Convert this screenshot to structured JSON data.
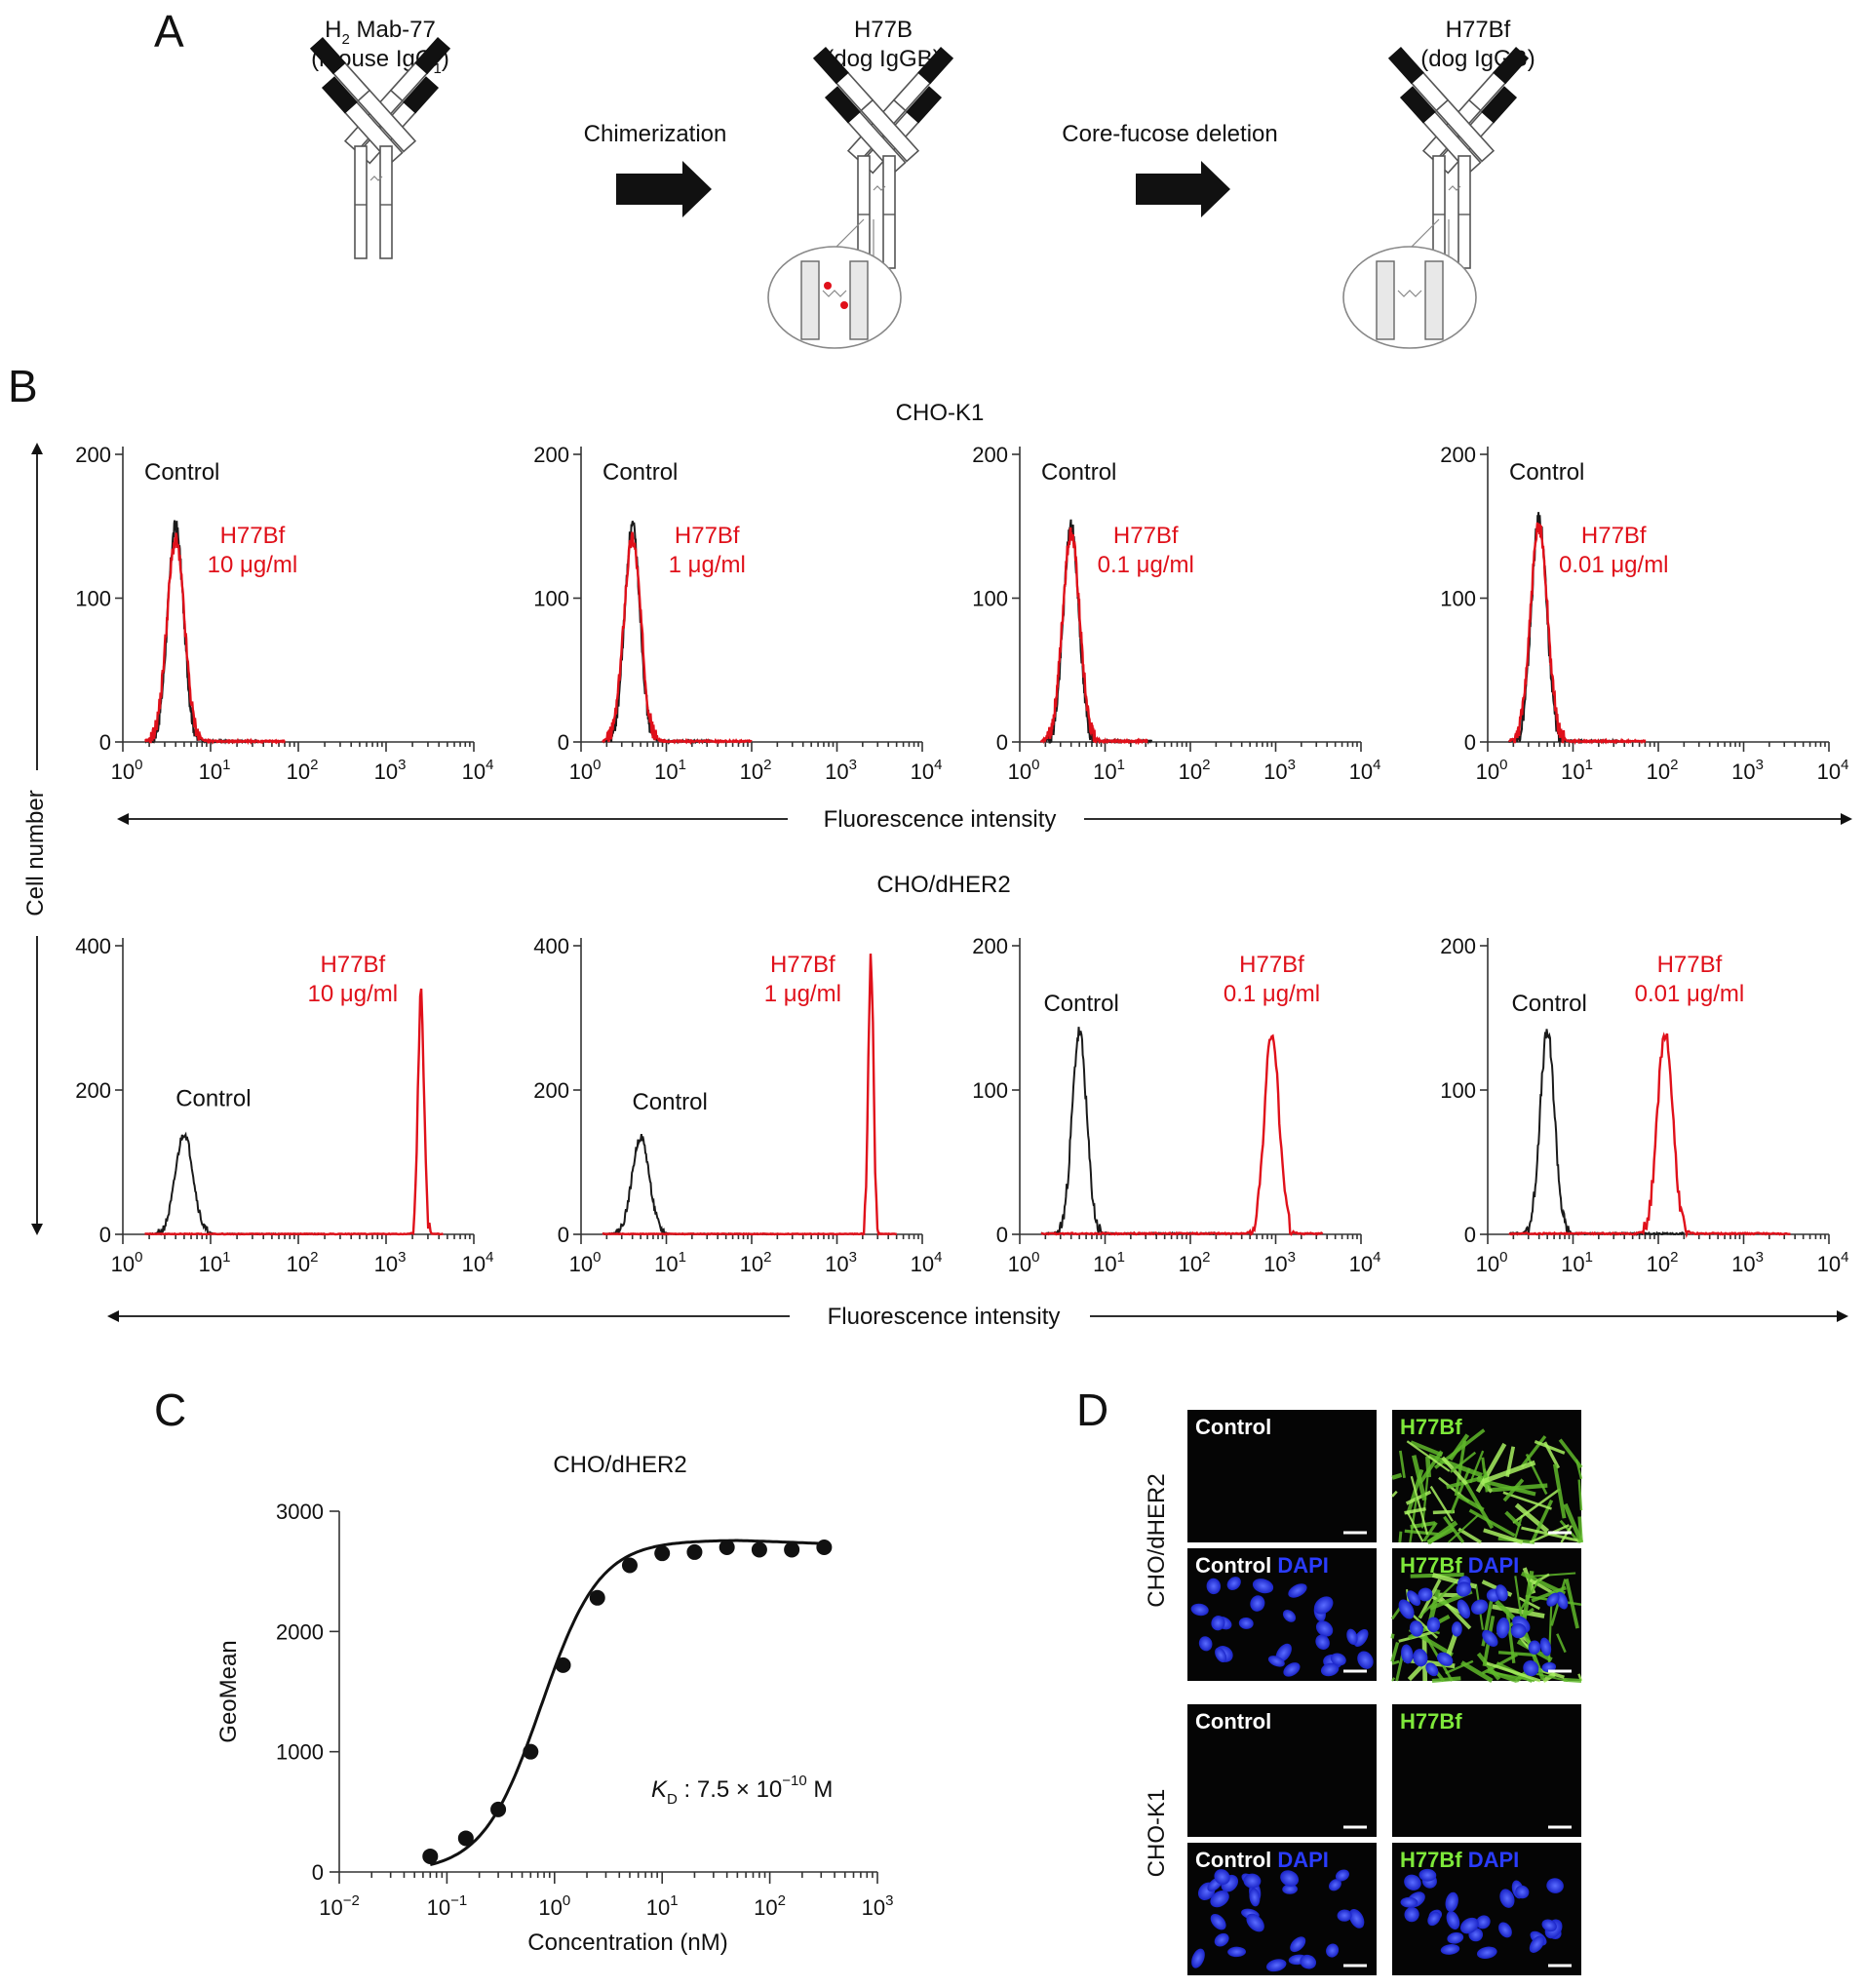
{
  "panel_a": {
    "letter": "A",
    "ab1": {
      "line1_prefix": "H",
      "line1_sub": "2",
      "line1_rest": " Mab-77",
      "line2_prefix": "(mouse IgG",
      "line2_sub": "1",
      "line2_suffix": ")"
    },
    "arrow1_label": "Chimerization",
    "ab2": {
      "line1": "H77B",
      "line2": "(dog IgGB)"
    },
    "arrow2_label": "Core-fucose deletion",
    "ab3": {
      "line1": "H77Bf",
      "line2": "(dog IgGB)"
    }
  },
  "panel_b": {
    "letter": "B",
    "row1_title": "CHO-K1",
    "row2_title": "CHO/dHER2",
    "y_axis_label": "Cell number",
    "x_axis_label": "Fluorescence intensity",
    "control_label": "Control",
    "antibody_label": "H77Bf",
    "concentrations": [
      "10 μg/ml",
      "1 μg/ml",
      "0.1 μg/ml",
      "0.01 μg/ml"
    ],
    "colors": {
      "control": "#1a1a1a",
      "antibody": "#e0101a"
    }
  },
  "panel_c": {
    "letter": "C",
    "kd_symbol": "K",
    "kd_sub": "D",
    "kd_text": " : 7.5 × 10",
    "kd_exp": "−10",
    "kd_unit": " M"
  },
  "panel_d": {
    "letter": "D",
    "row_labels": [
      "CHO/dHER2",
      "CHO-K1"
    ],
    "control": "Control",
    "antibody": "H77Bf",
    "dapi": "DAPI",
    "colors": {
      "green": "#7ee83a",
      "blue": "#2a3cff"
    }
  },
  "chart_data": [
    {
      "type": "histogram",
      "title": "CHO-K1",
      "x_scale": "log",
      "xlim": [
        1,
        10000
      ],
      "xticks": [
        "10^0",
        "10^1",
        "10^2",
        "10^3",
        "10^4"
      ],
      "ylim": [
        0,
        200
      ],
      "yticks": [
        0,
        100,
        200
      ],
      "series": [
        {
          "name": "Control",
          "peak_x": 4,
          "peak_y": 150
        },
        {
          "name": "H77Bf 10 μg/ml",
          "peak_x": 4,
          "peak_y": 140
        }
      ]
    },
    {
      "type": "histogram",
      "title": "CHO-K1",
      "x_scale": "log",
      "xlim": [
        1,
        10000
      ],
      "xticks": [
        "10^0",
        "10^1",
        "10^2",
        "10^3",
        "10^4"
      ],
      "ylim": [
        0,
        200
      ],
      "yticks": [
        0,
        100,
        200
      ],
      "series": [
        {
          "name": "Control",
          "peak_x": 4,
          "peak_y": 150
        },
        {
          "name": "H77Bf 1 μg/ml",
          "peak_x": 4,
          "peak_y": 142
        }
      ]
    },
    {
      "type": "histogram",
      "title": "CHO-K1",
      "x_scale": "log",
      "xlim": [
        1,
        10000
      ],
      "xticks": [
        "10^0",
        "10^1",
        "10^2",
        "10^3",
        "10^4"
      ],
      "ylim": [
        0,
        200
      ],
      "yticks": [
        0,
        100,
        200
      ],
      "series": [
        {
          "name": "Control",
          "peak_x": 4,
          "peak_y": 150
        },
        {
          "name": "H77Bf 0.1 μg/ml",
          "peak_x": 4,
          "peak_y": 145
        }
      ]
    },
    {
      "type": "histogram",
      "title": "CHO-K1",
      "x_scale": "log",
      "xlim": [
        1,
        10000
      ],
      "xticks": [
        "10^0",
        "10^1",
        "10^2",
        "10^3",
        "10^4"
      ],
      "ylim": [
        0,
        200
      ],
      "yticks": [
        0,
        100,
        200
      ],
      "series": [
        {
          "name": "Control",
          "peak_x": 4,
          "peak_y": 155
        },
        {
          "name": "H77Bf 0.01 μg/ml",
          "peak_x": 4,
          "peak_y": 150
        }
      ]
    },
    {
      "type": "histogram",
      "title": "CHO/dHER2",
      "x_scale": "log",
      "xlim": [
        1,
        10000
      ],
      "xticks": [
        "10^0",
        "10^1",
        "10^2",
        "10^3",
        "10^4"
      ],
      "ylim": [
        0,
        400
      ],
      "yticks": [
        0,
        200,
        400
      ],
      "series": [
        {
          "name": "Control",
          "peak_x": 5,
          "peak_y": 140
        },
        {
          "name": "H77Bf 10 μg/ml",
          "peak_x": 2500,
          "peak_y": 330
        }
      ]
    },
    {
      "type": "histogram",
      "title": "CHO/dHER2",
      "x_scale": "log",
      "xlim": [
        1,
        10000
      ],
      "xticks": [
        "10^0",
        "10^1",
        "10^2",
        "10^3",
        "10^4"
      ],
      "ylim": [
        0,
        400
      ],
      "yticks": [
        0,
        200,
        400
      ],
      "series": [
        {
          "name": "Control",
          "peak_x": 5,
          "peak_y": 135
        },
        {
          "name": "H77Bf 1 μg/ml",
          "peak_x": 2500,
          "peak_y": 380
        }
      ]
    },
    {
      "type": "histogram",
      "title": "CHO/dHER2",
      "x_scale": "log",
      "xlim": [
        1,
        10000
      ],
      "xticks": [
        "10^0",
        "10^1",
        "10^2",
        "10^3",
        "10^4"
      ],
      "ylim": [
        0,
        200
      ],
      "yticks": [
        0,
        100,
        200
      ],
      "series": [
        {
          "name": "Control",
          "peak_x": 5,
          "peak_y": 140
        },
        {
          "name": "H77Bf 0.1 μg/ml",
          "peak_x": 900,
          "peak_y": 140
        }
      ]
    },
    {
      "type": "histogram",
      "title": "CHO/dHER2",
      "x_scale": "log",
      "xlim": [
        1,
        10000
      ],
      "xticks": [
        "10^0",
        "10^1",
        "10^2",
        "10^3",
        "10^4"
      ],
      "ylim": [
        0,
        200
      ],
      "yticks": [
        0,
        100,
        200
      ],
      "series": [
        {
          "name": "Control",
          "peak_x": 5,
          "peak_y": 140
        },
        {
          "name": "H77Bf 0.01 μg/ml",
          "peak_x": 120,
          "peak_y": 140
        }
      ]
    },
    {
      "type": "scatter",
      "title": "CHO/dHER2",
      "xlabel": "Concentration (nM)",
      "ylabel": "GeoMean",
      "x_scale": "log",
      "xlim": [
        0.01,
        1000
      ],
      "ylim": [
        0,
        3000
      ],
      "xticks": [
        "10^-2",
        "10^-1",
        "10^0",
        "10^1",
        "10^2",
        "10^3"
      ],
      "yticks": [
        0,
        1000,
        2000,
        3000
      ],
      "x": [
        0.07,
        0.15,
        0.3,
        0.6,
        1.2,
        2.5,
        5,
        10,
        20,
        40,
        80,
        160,
        320
      ],
      "y": [
        130,
        280,
        520,
        1000,
        1720,
        2280,
        2550,
        2650,
        2660,
        2700,
        2680,
        2680,
        2700
      ],
      "fit": {
        "model": "saturation",
        "bmax": 2760,
        "kd_nM": 0.75,
        "x_start": 0.07,
        "x_end": 320
      }
    }
  ]
}
